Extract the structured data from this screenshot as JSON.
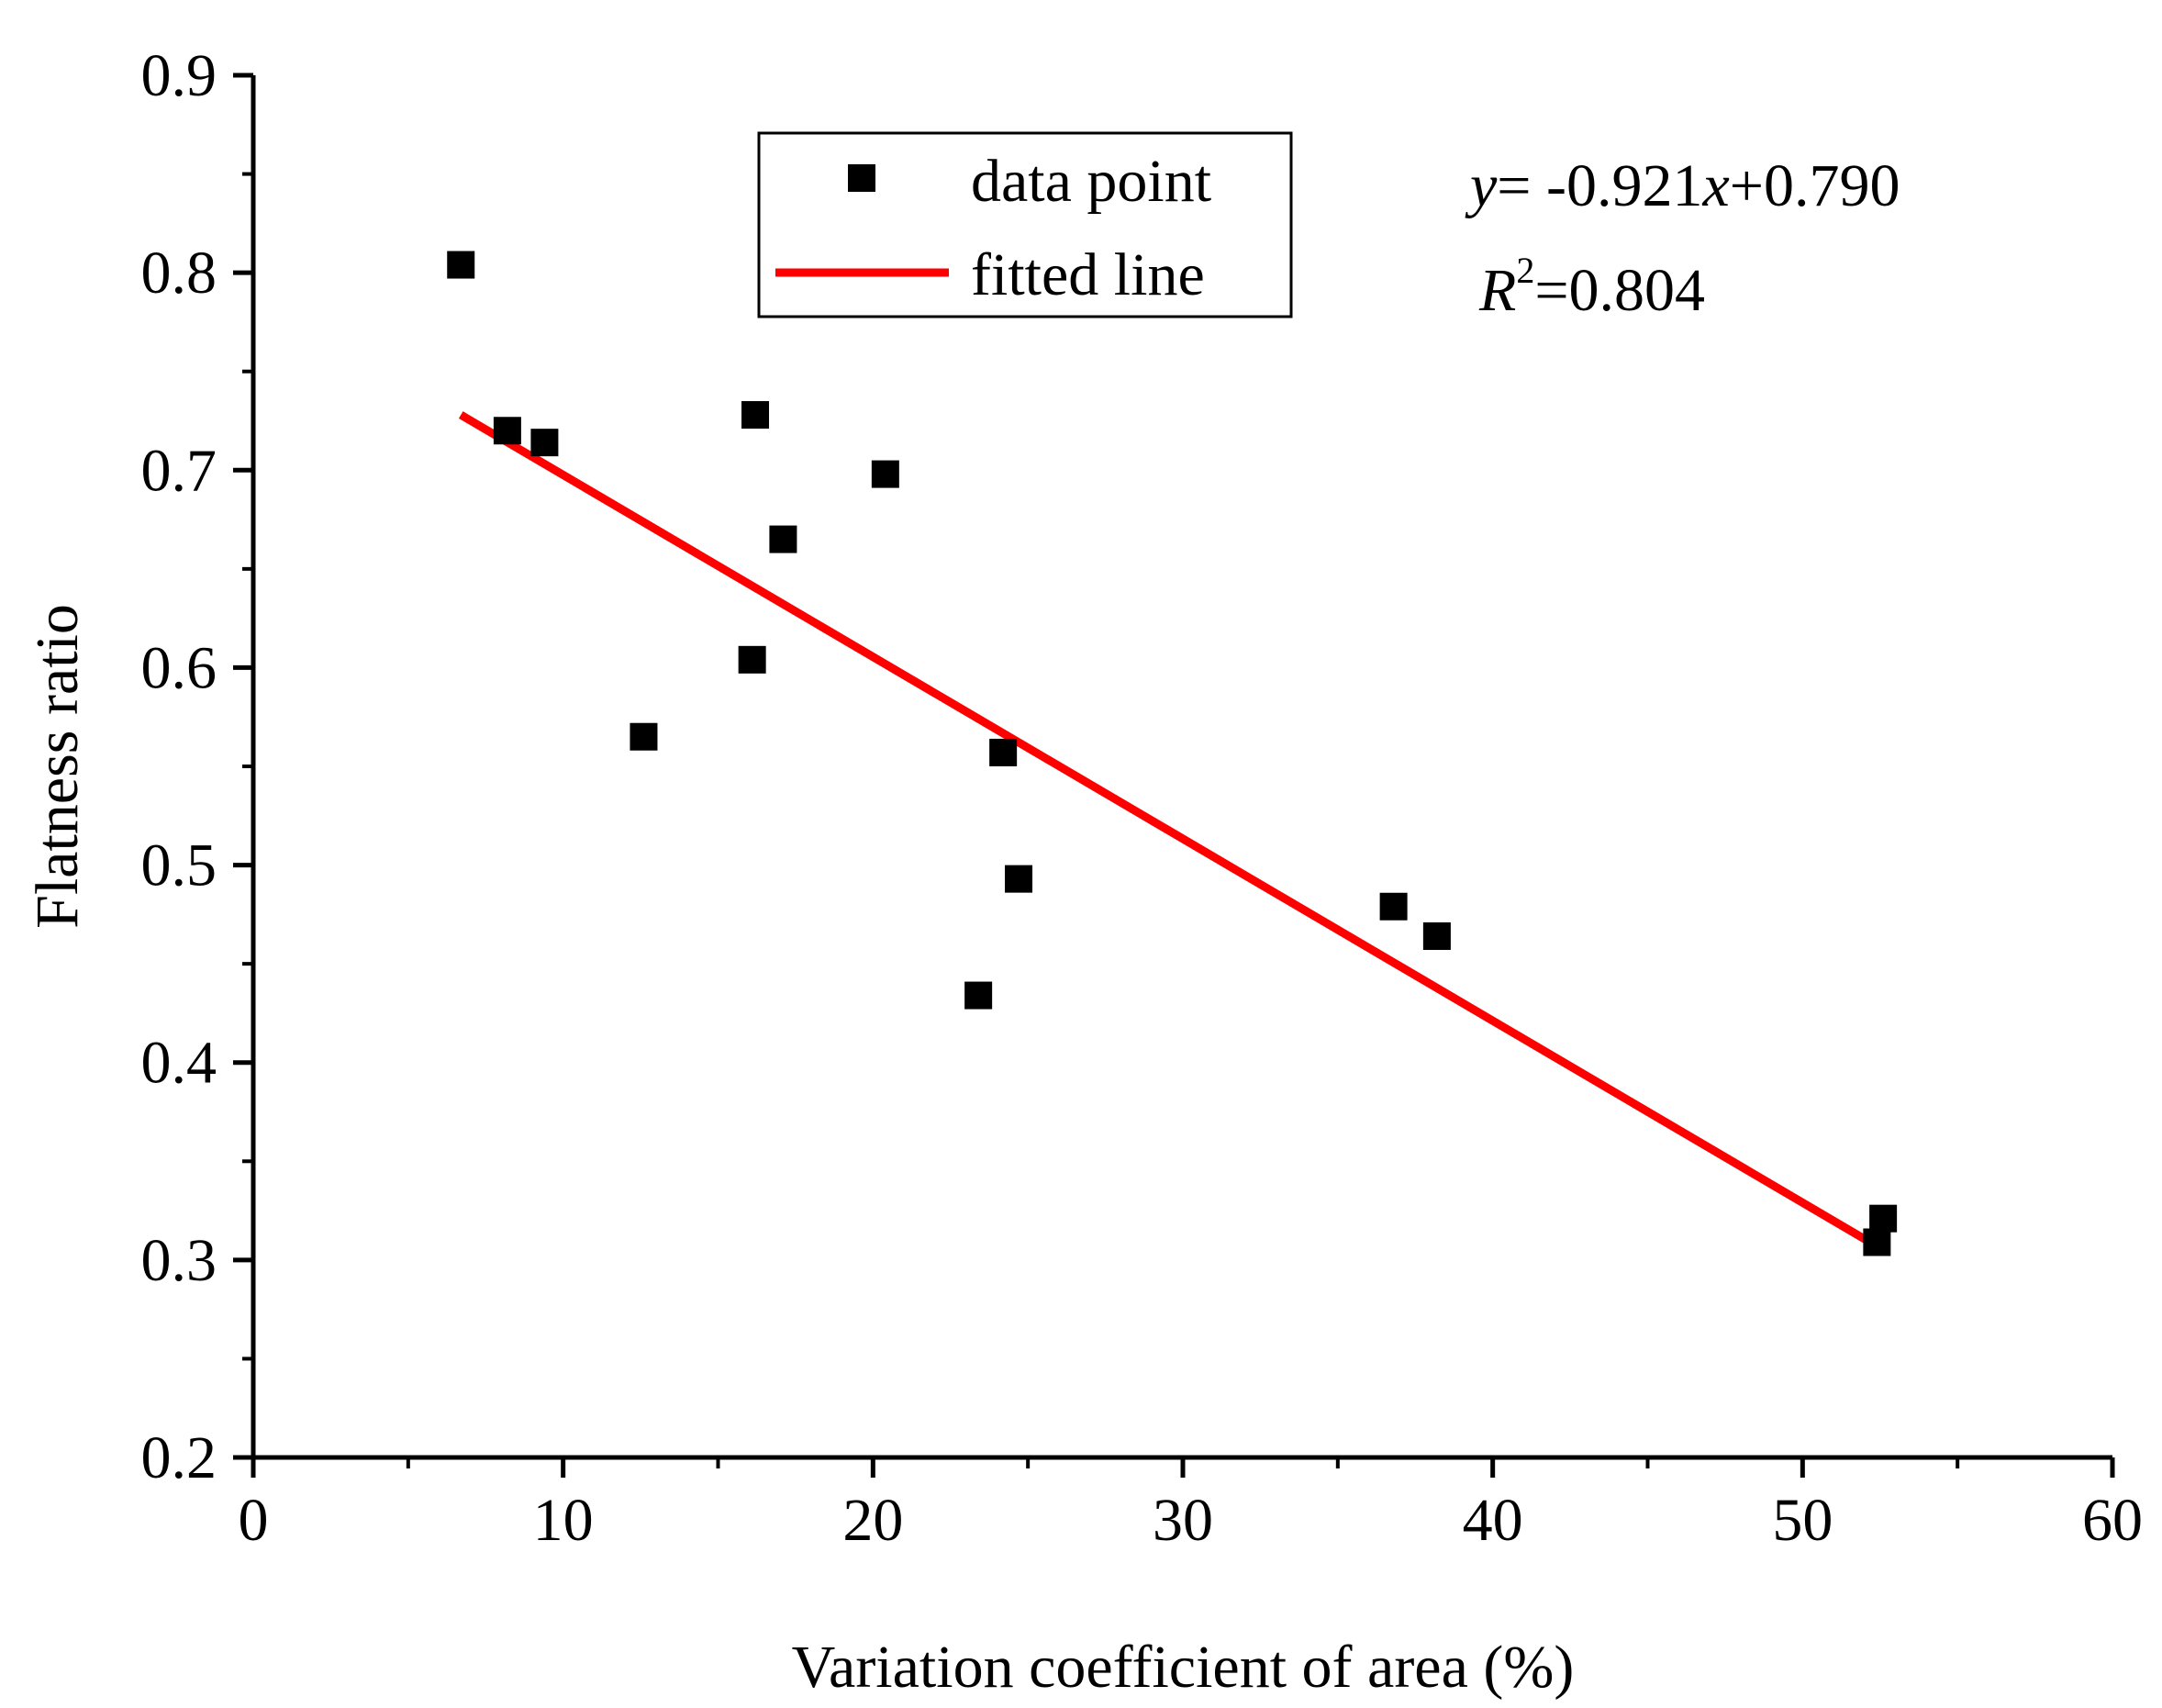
{
  "chart_data": {
    "type": "scatter",
    "xlabel": "Variation coefficient of area (%)",
    "ylabel": "Flatness ratio",
    "xlim": [
      0,
      60
    ],
    "ylim": [
      0.2,
      0.9
    ],
    "xticks": [
      0,
      10,
      20,
      30,
      40,
      50,
      60
    ],
    "xtick_labels": [
      "0",
      "10",
      "20",
      "30",
      "40",
      "50",
      "60"
    ],
    "yticks": [
      0.2,
      0.3,
      0.4,
      0.5,
      0.6,
      0.7,
      0.8,
      0.9
    ],
    "ytick_labels": [
      "0.2",
      "0.3",
      "0.4",
      "0.5",
      "0.6",
      "0.7",
      "0.8",
      "0.9"
    ],
    "x_minor_step": 5,
    "y_minor_step": 0.05,
    "grid": false,
    "legend_position": "top-center",
    "series": [
      {
        "name": "data point",
        "kind": "scatter",
        "marker": "square",
        "color": "#000000",
        "points": [
          {
            "x": 6.7,
            "y": 0.804
          },
          {
            "x": 8.2,
            "y": 0.72
          },
          {
            "x": 9.4,
            "y": 0.714
          },
          {
            "x": 12.6,
            "y": 0.565
          },
          {
            "x": 16.1,
            "y": 0.604
          },
          {
            "x": 16.2,
            "y": 0.728
          },
          {
            "x": 17.1,
            "y": 0.665
          },
          {
            "x": 20.4,
            "y": 0.698
          },
          {
            "x": 23.4,
            "y": 0.434
          },
          {
            "x": 24.2,
            "y": 0.557
          },
          {
            "x": 24.7,
            "y": 0.493
          },
          {
            "x": 36.8,
            "y": 0.479
          },
          {
            "x": 38.2,
            "y": 0.464
          },
          {
            "x": 52.4,
            "y": 0.309
          },
          {
            "x": 52.6,
            "y": 0.321
          }
        ]
      },
      {
        "name": "fitted line",
        "kind": "line",
        "color": "#ff0000",
        "points": [
          {
            "x": 6.7,
            "y": 0.728
          },
          {
            "x": 52.5,
            "y": 0.306
          }
        ]
      }
    ],
    "annotation": {
      "eq_y": "y",
      "eq_mid": "= -0.921",
      "eq_x": "x",
      "eq_tail": "+0.790",
      "r2_R": "R",
      "r2_sup": "2",
      "r2_tail": "=0.804"
    }
  }
}
